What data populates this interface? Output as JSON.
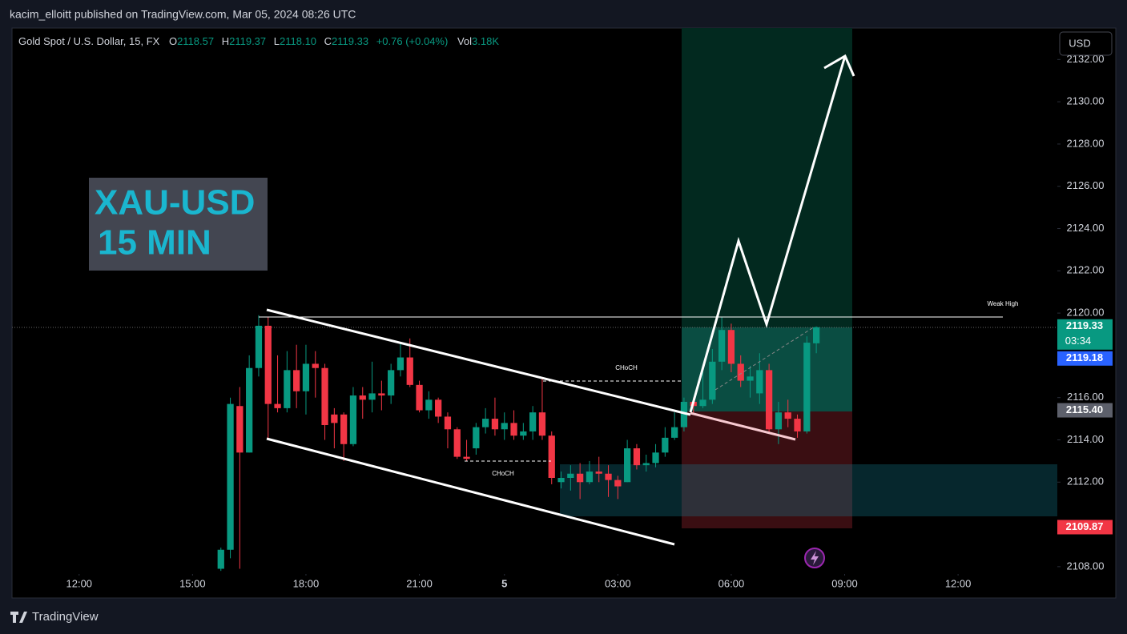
{
  "header": {
    "text": "kacim_elloitt published on TradingView.com, Mar 05, 2024 08:26 UTC"
  },
  "footer": {
    "brand": "TradingView"
  },
  "chart_data": {
    "type": "candlestick",
    "legend": {
      "symbol": "Gold Spot / U.S. Dollar, 15, FX",
      "o_label": "O",
      "o": "2118.57",
      "h_label": "H",
      "h": "2119.37",
      "l_label": "L",
      "l": "2118.10",
      "c_label": "C",
      "c": "2119.33",
      "change": "+0.76 (+0.04%)",
      "vol_label": "Vol",
      "vol": "3.18K"
    },
    "currency": "USD",
    "overlay_title": [
      "XAU-USD",
      "15 MIN"
    ],
    "annotations": [
      "CHoCH",
      "CHoCH",
      "Weak High"
    ],
    "up_color": "#089981",
    "down_color": "#f23645",
    "open": [
      2107.9,
      2108.8,
      2115.6,
      2113.4,
      2117.4,
      2119.4,
      2115.7,
      2115.5,
      2117.3,
      2116.3,
      2117.6,
      2117.4,
      2115.2,
      2115.2,
      2113.8,
      2116.1,
      2115.9,
      2116.2,
      2116.1,
      2117.3,
      2117.9,
      2116.6,
      2115.4,
      2115.9,
      2115.1,
      2114.5,
      2113.2,
      2113.6,
      2114.6,
      2115.0,
      2114.5,
      2114.8,
      2114.2,
      2114.4,
      2115.3,
      2114.2,
      2112.0,
      2112.2,
      2112.4,
      2112.0,
      2112.5,
      2112.4,
      2112.1,
      2112.0,
      2113.6,
      2112.8,
      2112.9,
      2113.4,
      2114.1,
      2114.6,
      2115.8,
      2115.6,
      2115.9,
      2117.7,
      2119.2,
      2117.6,
      2116.8,
      2116.2,
      2117.3,
      2114.5,
      2115.3,
      2115.0,
      2114.4,
      2118.57
    ],
    "high": [
      2108.9,
      2116.0,
      2116.5,
      2118.0,
      2119.9,
      2119.8,
      2118.0,
      2118.2,
      2118.5,
      2118.5,
      2118.2,
      2117.6,
      2115.5,
      2115.3,
      2116.5,
      2116.5,
      2117.7,
      2116.8,
      2117.6,
      2118.6,
      2118.8,
      2116.8,
      2116.3,
      2116.0,
      2115.3,
      2114.6,
      2114.0,
      2114.8,
      2115.5,
      2116.0,
      2115.3,
      2115.4,
      2114.8,
      2115.6,
      2116.9,
      2114.4,
      2112.5,
      2112.8,
      2112.9,
      2113.0,
      2113.2,
      2112.8,
      2112.3,
      2114.0,
      2113.8,
      2113.3,
      2113.8,
      2114.6,
      2115.3,
      2116.0,
      2116.0,
      2117.5,
      2118.3,
      2119.8,
      2119.5,
      2118.0,
      2117.5,
      2118.1,
      2117.6,
      2115.8,
      2115.9,
      2115.2,
      2118.9,
      2119.37
    ],
    "low": [
      2107.8,
      2108.4,
      2107.9,
      2113.4,
      2117.0,
      2114.0,
      2115.3,
      2115.3,
      2115.5,
      2115.2,
      2116.0,
      2114.0,
      2113.6,
      2113.0,
      2113.7,
      2115.0,
      2115.3,
      2115.4,
      2115.7,
      2117.0,
      2116.5,
      2115.3,
      2115.0,
      2114.8,
      2113.6,
      2113.1,
      2113.0,
      2113.3,
      2114.3,
      2114.2,
      2114.0,
      2114.0,
      2114.0,
      2114.0,
      2114.0,
      2111.9,
      2111.7,
      2111.6,
      2111.2,
      2111.9,
      2112.0,
      2111.3,
      2111.2,
      2112.0,
      2112.6,
      2112.5,
      2112.7,
      2113.2,
      2114.0,
      2114.4,
      2115.3,
      2115.5,
      2115.7,
      2117.3,
      2117.2,
      2116.5,
      2116.0,
      2115.7,
      2114.3,
      2113.8,
      2114.6,
      2114.1,
      2114.3,
      2118.1
    ],
    "close": [
      2108.8,
      2115.7,
      2113.4,
      2117.4,
      2119.4,
      2115.7,
      2115.5,
      2117.3,
      2116.3,
      2117.6,
      2117.4,
      2114.7,
      2114.8,
      2113.8,
      2116.1,
      2115.9,
      2116.2,
      2116.1,
      2117.3,
      2117.9,
      2116.6,
      2115.4,
      2115.9,
      2115.1,
      2114.5,
      2113.2,
      2113.1,
      2114.6,
      2115.0,
      2114.5,
      2114.8,
      2114.2,
      2114.4,
      2115.3,
      2114.2,
      2112.2,
      2112.2,
      2112.4,
      2112.0,
      2112.5,
      2112.4,
      2112.1,
      2111.8,
      2113.6,
      2112.8,
      2112.9,
      2113.4,
      2114.1,
      2114.6,
      2115.8,
      2115.6,
      2115.9,
      2117.7,
      2119.2,
      2117.6,
      2116.8,
      2117.0,
      2117.3,
      2114.5,
      2115.3,
      2115.0,
      2114.4,
      2118.6,
      2119.33
    ],
    "xlim": [
      -22.1,
      88.5
    ],
    "xticks": [
      {
        "value": -15,
        "label": "12:00"
      },
      {
        "value": -3,
        "label": "15:00"
      },
      {
        "value": 9,
        "label": "18:00"
      },
      {
        "value": 21,
        "label": "21:00"
      },
      {
        "value": 30,
        "label": "5"
      },
      {
        "value": 42,
        "label": "03:00"
      },
      {
        "value": 54,
        "label": "06:00"
      },
      {
        "value": 66,
        "label": "09:00"
      },
      {
        "value": 78,
        "label": "12:00"
      }
    ],
    "ylim": [
      2107.73,
      2133.49
    ],
    "yticks": [
      {
        "value": 2108,
        "label": "2108.00"
      },
      {
        "value": 2112,
        "label": "2112.00"
      },
      {
        "value": 2114,
        "label": "2114.00"
      },
      {
        "value": 2116,
        "label": "2116.00"
      },
      {
        "value": 2120,
        "label": "2120.00"
      },
      {
        "value": 2122,
        "label": "2122.00"
      },
      {
        "value": 2124,
        "label": "2124.00"
      },
      {
        "value": 2126,
        "label": "2126.00"
      },
      {
        "value": 2128,
        "label": "2128.00"
      },
      {
        "value": 2130,
        "label": "2130.00"
      },
      {
        "value": 2132,
        "label": "2132.00"
      }
    ],
    "price_labels": [
      {
        "value": 2119.33,
        "label": "2119.33",
        "sub": "03:34",
        "color": "#089981"
      },
      {
        "value": 2119.18,
        "label": "2119.18",
        "color": "#2962ff"
      },
      {
        "value": 2115.4,
        "label": "2115.40",
        "color": "#5d606b"
      },
      {
        "value": 2109.87,
        "label": "2109.87",
        "color": "#f23645"
      }
    ]
  }
}
